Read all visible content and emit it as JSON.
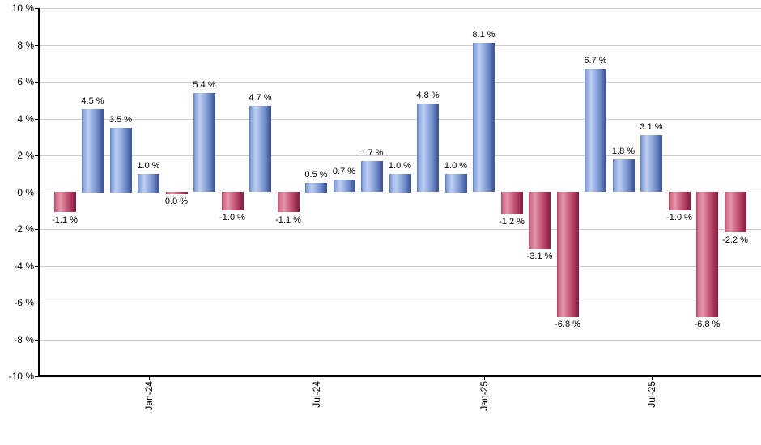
{
  "chart_data": {
    "type": "bar",
    "title": "",
    "xlabel": "",
    "ylabel": "",
    "values": [
      -1.1,
      4.5,
      3.5,
      1.0,
      0.0,
      5.4,
      -1.0,
      4.7,
      -1.1,
      0.5,
      0.7,
      1.7,
      1.0,
      4.8,
      1.0,
      8.1,
      -1.2,
      -3.1,
      -6.8,
      6.7,
      1.8,
      3.1,
      -1.0,
      -6.8,
      -2.2
    ],
    "bar_labels": [
      "-1.1 %",
      "4.5 %",
      "3.5 %",
      "1.0 %",
      "0.0 %",
      "5.4 %",
      "-1.0 %",
      "4.7 %",
      "-1.1 %",
      "0.5 %",
      "0.7 %",
      "1.7 %",
      "1.0 %",
      "4.8 %",
      "1.0 %",
      "8.1 %",
      "-1.2 %",
      "-3.1 %",
      "-6.8 %",
      "6.7 %",
      "1.8 %",
      "3.1 %",
      "-1.0 %",
      "-6.8 %",
      "-2.2 %"
    ],
    "x_ticks": [
      {
        "bar_index": 3,
        "label": "Jan-24"
      },
      {
        "bar_index": 9,
        "label": "Jul-24"
      },
      {
        "bar_index": 15,
        "label": "Jan-25"
      },
      {
        "bar_index": 21,
        "label": "Jul-25"
      }
    ],
    "y_ticks": [
      {
        "value": 10,
        "label": "10 %"
      },
      {
        "value": 8,
        "label": "8 %"
      },
      {
        "value": 6,
        "label": "6 %"
      },
      {
        "value": 4,
        "label": "4 %"
      },
      {
        "value": 2,
        "label": "2 %"
      },
      {
        "value": 0,
        "label": "0 %"
      },
      {
        "value": -2,
        "label": "-2 %"
      },
      {
        "value": -4,
        "label": "-4 %"
      },
      {
        "value": -6,
        "label": "-6 %"
      },
      {
        "value": -8,
        "label": "-8 %"
      },
      {
        "value": -10,
        "label": "-10 %"
      }
    ],
    "ylim": [
      -10,
      10
    ],
    "grid": true,
    "legend": "none",
    "positive_color": "#7a9ad8",
    "negative_color": "#c4476b",
    "gridline_color": "#cccccc",
    "axis_color": "#000000",
    "label_color": "#000000",
    "background_color": "#ffffff"
  }
}
